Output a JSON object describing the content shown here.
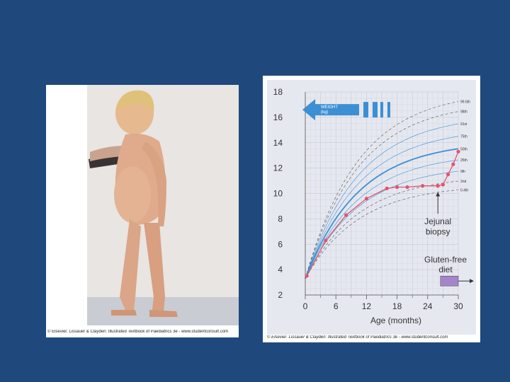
{
  "photo": {
    "caption": "© Elsevier. Lissauer & Clayden: Illustrated Textbook of Paediatrics 3e - www.studentconsult.com"
  },
  "chart_caption": "© Elsevier. Lissauer & Clayden: Illustrated Textbook of Paediatrics 3e - www.studentconsult.com",
  "chart_data": {
    "type": "line",
    "xlabel": "Age (months)",
    "ylabel": "WEIGHT (kg)",
    "xlim": [
      0,
      30
    ],
    "ylim": [
      2,
      18
    ],
    "x_ticks": [
      "0",
      "6",
      "12",
      "18",
      "24",
      "30"
    ],
    "x_minor_ticks": [
      "3",
      "9",
      "15",
      "21",
      "27"
    ],
    "y_ticks": [
      "2",
      "4",
      "6",
      "8",
      "10",
      "12",
      "14",
      "16",
      "18"
    ],
    "grid": true,
    "centile_labels": [
      "99.6th",
      "98th",
      "91st",
      "75th",
      "50th",
      "25th",
      "9th",
      "2nd",
      "0.4th"
    ],
    "centile_max_values": [
      17.6,
      16.8,
      15.8,
      14.8,
      13.8,
      12.9,
      12.0,
      11.2,
      10.5
    ],
    "centiles_scale": 0.98,
    "series": [
      {
        "name": "",
        "x": [
          0.3,
          4,
          8,
          12,
          16,
          18,
          20,
          23,
          26,
          27,
          28,
          29,
          30
        ],
        "y": [
          3.5,
          6.3,
          8.3,
          9.6,
          10.4,
          10.5,
          10.5,
          10.6,
          10.6,
          10.7,
          11.5,
          12.3,
          13.3
        ]
      }
    ],
    "annotations": {
      "arrow_label": "WEIGHT\n(kg)",
      "jejunal_line1": "Jejunal",
      "jejunal_line2": "biopsy",
      "gluten_line1": "Gluten-free",
      "gluten_line2": "diet",
      "jejunal_at_x": 26,
      "jejunal_text_y": 6.3,
      "diet_start_x": 26.5,
      "diet_end_x": 30,
      "diet_y": 3.1
    }
  }
}
